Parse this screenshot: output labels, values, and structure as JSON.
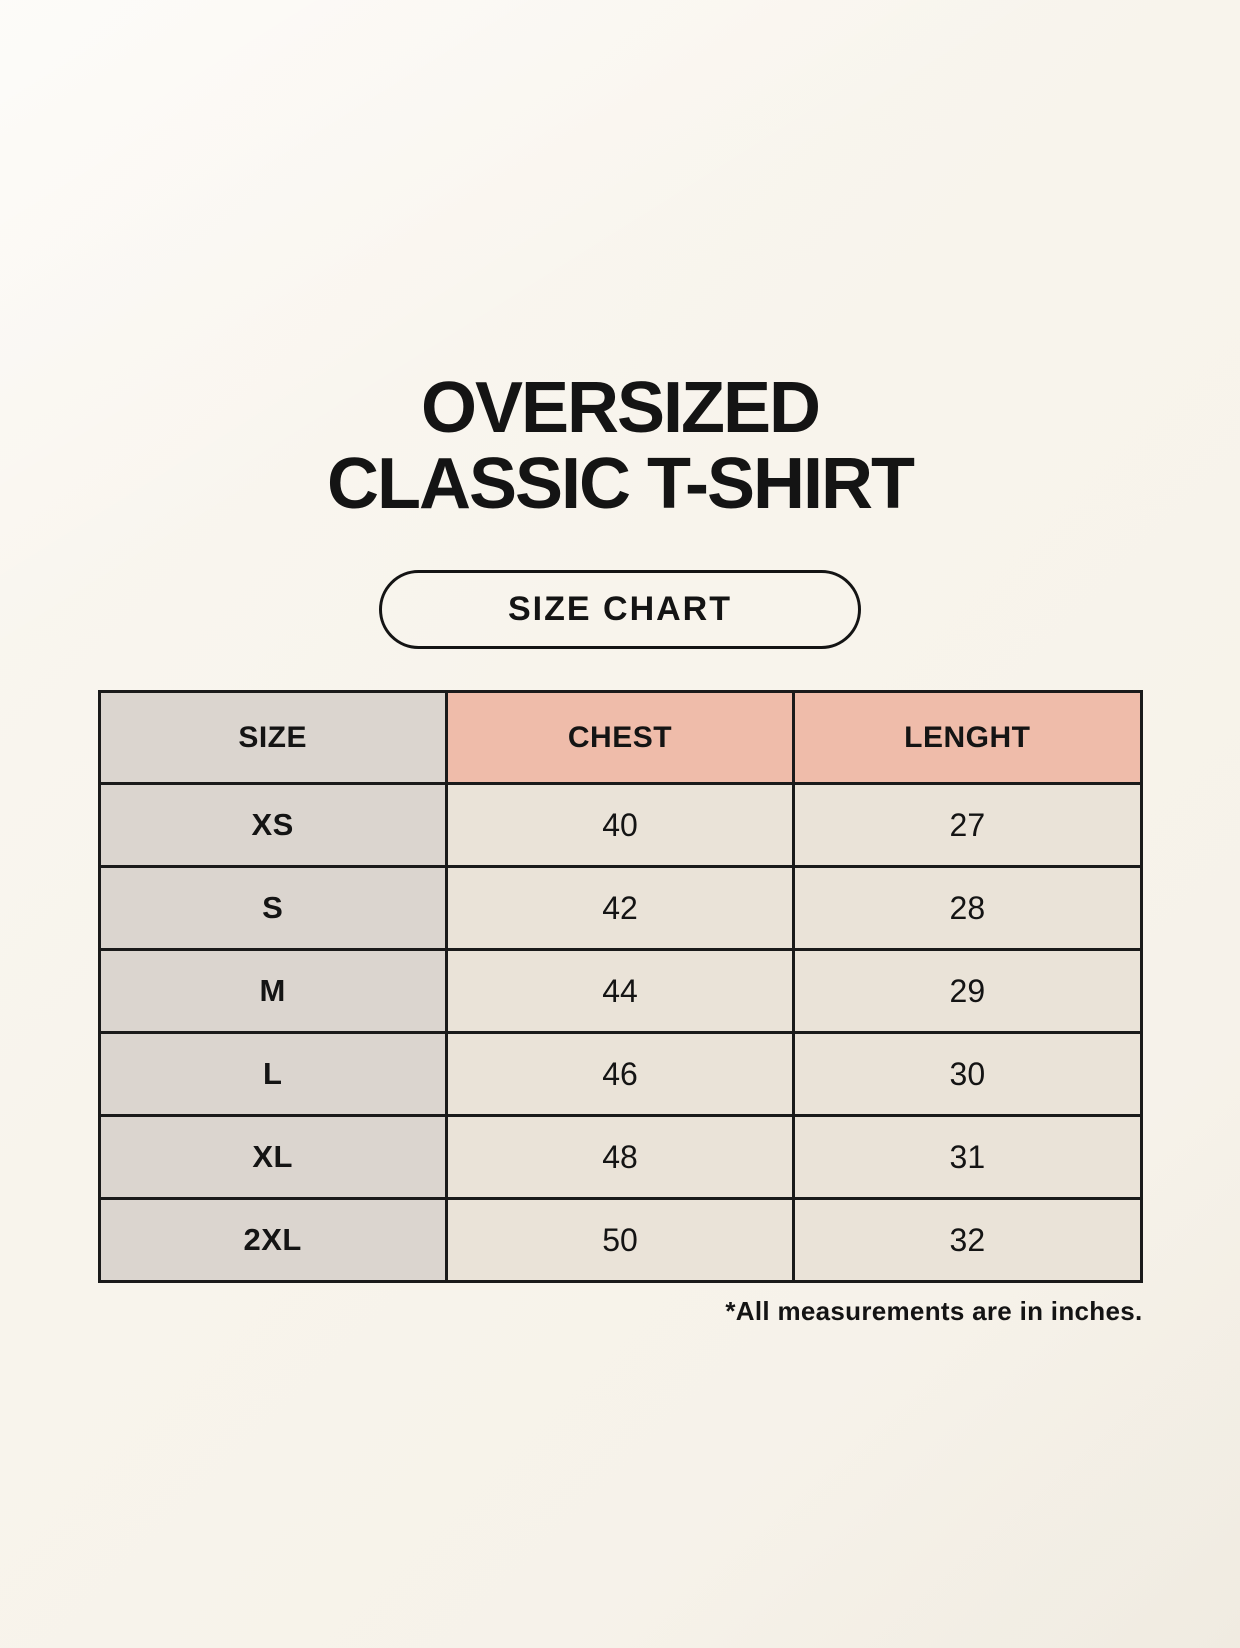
{
  "title": {
    "line1": "OVERSIZED",
    "line2": "CLASSIC T-SHIRT"
  },
  "size_chart_button": {
    "label": "SIZE CHART"
  },
  "footnote": "*All measurements are in inches.",
  "colors": {
    "background": "#f8f4ec",
    "header_accent_pink": "#efbcaa",
    "size_column_gray": "#dbd5cf",
    "value_cell_cream": "#eae3d8",
    "border_black": "#1a1a1a",
    "text_black": "#141414"
  },
  "chart_data": {
    "type": "table",
    "title": "OVERSIZED CLASSIC T-SHIRT",
    "subtitle": "SIZE CHART",
    "columns": [
      "SIZE",
      "CHEST",
      "LENGHT"
    ],
    "rows": [
      [
        "XS",
        40,
        27
      ],
      [
        "S",
        42,
        28
      ],
      [
        "M",
        44,
        29
      ],
      [
        "L",
        46,
        30
      ],
      [
        "XL",
        48,
        31
      ],
      [
        "2XL",
        50,
        32
      ]
    ],
    "units_note": "*All measurements are in inches.",
    "layout_hints": {
      "size_column_background": "gray",
      "measurement_header_background": "salmon-pink",
      "grid": "on"
    }
  }
}
